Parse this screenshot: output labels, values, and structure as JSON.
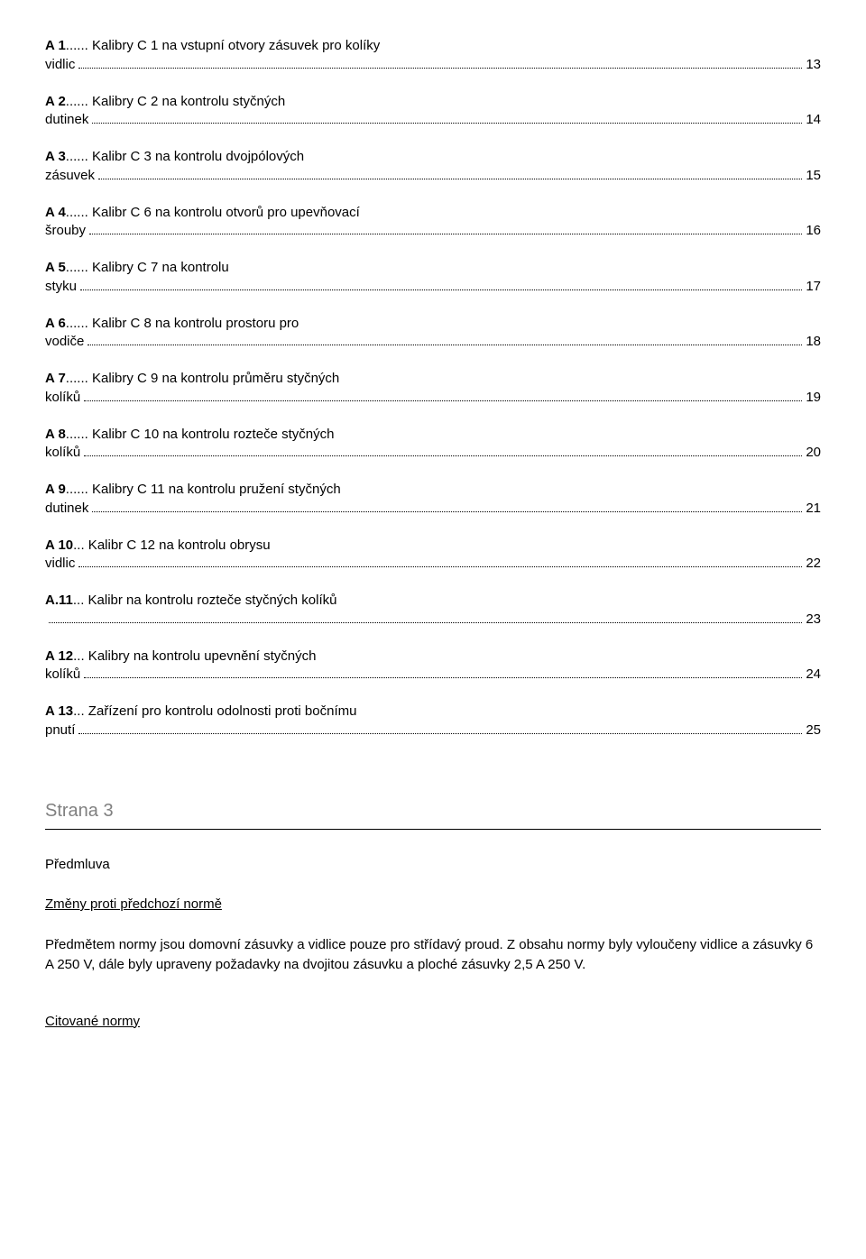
{
  "toc": [
    {
      "label": "A 1",
      "title": "...... Kalibry C 1 na vstupní otvory zásuvek pro kolíky",
      "cont": "vidlic",
      "page": "13"
    },
    {
      "label": "A 2",
      "title": "...... Kalibry C 2 na kontrolu styčných",
      "cont": "dutinek",
      "page": "14"
    },
    {
      "label": "A 3",
      "title": "...... Kalibr C 3 na kontrolu dvojpólových",
      "cont": "zásuvek",
      "page": "15"
    },
    {
      "label": "A 4",
      "title": "...... Kalibr C 6 na kontrolu otvorů pro upevňovací",
      "cont": "šrouby",
      "page": "16"
    },
    {
      "label": "A 5",
      "title": "...... Kalibry C 7 na kontrolu",
      "cont": "styku",
      "page": "17"
    },
    {
      "label": "A 6",
      "title": "...... Kalibr C 8 na kontrolu prostoru pro",
      "cont": "vodiče",
      "page": "18"
    },
    {
      "label": "A 7",
      "title": "...... Kalibry C 9 na kontrolu průměru styčných",
      "cont": "kolíků",
      "page": "19"
    },
    {
      "label": "A 8",
      "title": "...... Kalibr C 10 na kontrolu rozteče styčných",
      "cont": "kolíků",
      "page": "20"
    },
    {
      "label": "A 9",
      "title": "...... Kalibry C 11 na kontrolu pružení styčných",
      "cont": "dutinek",
      "page": "21"
    },
    {
      "label": "A 10",
      "title": "... Kalibr C 12 na kontrolu obrysu",
      "cont": "vidlic",
      "page": "22"
    },
    {
      "label": "A.11",
      "title": "... Kalibr na kontrolu rozteče styčných kolíků",
      "cont": "",
      "page": "23"
    },
    {
      "label": "A 12",
      "title": "... Kalibry na kontrolu upevnění styčných",
      "cont": "kolíků",
      "page": "24"
    },
    {
      "label": "A 13",
      "title": "... Zařízení pro kontrolu odolnosti proti bočnímu",
      "cont": "pnutí",
      "page": "25"
    }
  ],
  "strana3": "Strana 3",
  "predmluva": "Předmluva",
  "zmeny_heading": "Změny proti předchozí normě",
  "zmeny_body": "Předmětem normy jsou domovní zásuvky a vidlice pouze pro střídavý proud. Z obsahu normy byly vyloučeny vidlice a zásuvky 6 A 250 V, dále byly upraveny požadavky na dvojitou zásuvku a ploché zásuvky 2,5 A 250 V.",
  "citovane": "Citované normy"
}
